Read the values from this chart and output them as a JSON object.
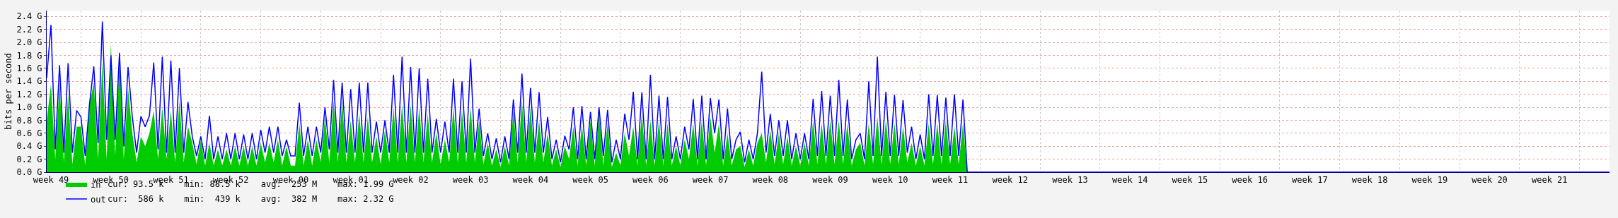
{
  "chart_data": {
    "type": "area",
    "ylabel": "bits per second",
    "categories": [
      null,
      "week 49",
      null,
      null,
      null,
      null,
      null,
      null,
      null,
      null,
      null,
      null,
      null,
      null,
      null,
      "week 50",
      null,
      null,
      null,
      null,
      null,
      null,
      null,
      null,
      null,
      null,
      null,
      null,
      null,
      "week 51",
      null,
      null,
      null,
      null,
      null,
      null,
      null,
      null,
      null,
      null,
      null,
      null,
      null,
      "week 52",
      null,
      null,
      null,
      null,
      null,
      null,
      null,
      null,
      null,
      null,
      null,
      null,
      null,
      "week 00",
      null,
      null,
      null,
      null,
      null,
      null,
      null,
      null,
      null,
      null,
      null,
      null,
      null,
      "week 01",
      null,
      null,
      null,
      null,
      null,
      null,
      null,
      null,
      null,
      null,
      null,
      null,
      null,
      "week 02",
      null,
      null,
      null,
      null,
      null,
      null,
      null,
      null,
      null,
      null,
      null,
      null,
      null,
      "week 03",
      null,
      null,
      null,
      null,
      null,
      null,
      null,
      null,
      null,
      null,
      null,
      null,
      null,
      "week 04",
      null,
      null,
      null,
      null,
      null,
      null,
      null,
      null,
      null,
      null,
      null,
      null,
      null,
      "week 05",
      null,
      null,
      null,
      null,
      null,
      null,
      null,
      null,
      null,
      null,
      null,
      null,
      null,
      "week 06",
      null,
      null,
      null,
      null,
      null,
      null,
      null,
      null,
      null,
      null,
      null,
      null,
      null,
      "week 07",
      null,
      null,
      null,
      null,
      null,
      null,
      null,
      null,
      null,
      null,
      null,
      null,
      null,
      "week 08",
      null,
      null,
      null,
      null,
      null,
      null,
      null,
      null,
      null,
      null,
      null,
      null,
      null,
      "week 09",
      null,
      null,
      null,
      null,
      null,
      null,
      null,
      null,
      null,
      null,
      null,
      null,
      null,
      "week 10",
      null,
      null,
      null,
      null,
      null,
      null,
      null,
      null,
      null,
      null,
      null,
      null,
      null,
      "week 11",
      null,
      null,
      null,
      null,
      null,
      null,
      null,
      null,
      null,
      null,
      null,
      null,
      null,
      "week 12",
      null,
      null,
      null,
      null,
      null,
      null,
      null,
      null,
      null,
      null,
      null,
      null,
      null,
      "week 13",
      null,
      null,
      null,
      null,
      null,
      null,
      null,
      null,
      null,
      null,
      null,
      null,
      null,
      "week 14",
      null,
      null,
      null,
      null,
      null,
      null,
      null,
      null,
      null,
      null,
      null,
      null,
      null,
      "week 15",
      null,
      null,
      null,
      null,
      null,
      null,
      null,
      null,
      null,
      null,
      null,
      null,
      null,
      "week 16",
      null,
      null,
      null,
      null,
      null,
      null,
      null,
      null,
      null,
      null,
      null,
      null,
      null,
      "week 17",
      null,
      null,
      null,
      null,
      null,
      null,
      null,
      null,
      null,
      null,
      null,
      null,
      null,
      "week 18",
      null,
      null,
      null,
      null,
      null,
      null,
      null,
      null,
      null,
      null,
      null,
      null,
      null,
      "week 19",
      null,
      null,
      null,
      null,
      null,
      null,
      null,
      null,
      null,
      null,
      null,
      null,
      null,
      "week 20",
      null,
      null,
      null,
      null,
      null,
      null,
      null,
      null,
      null,
      null,
      null,
      null,
      null,
      "week 21",
      null,
      null,
      null,
      null,
      null,
      null,
      null,
      null,
      null,
      null,
      null,
      null,
      null,
      null
    ],
    "series": [
      {
        "name": "in",
        "color": "#00cc00",
        "values": [
          0.8,
          1.35,
          0.2,
          1.38,
          0.15,
          1.2,
          0.12,
          0.7,
          0.7,
          0.1,
          1.05,
          1.38,
          0.2,
          1.7,
          0.2,
          1.98,
          0.25,
          1.75,
          0.2,
          1.3,
          0.6,
          0.15,
          0.55,
          0.4,
          0.6,
          0.95,
          0.2,
          1.0,
          0.2,
          0.95,
          0.15,
          1.1,
          0.15,
          0.7,
          0.45,
          0.12,
          0.5,
          0.1,
          0.45,
          0.1,
          0.35,
          0.1,
          0.35,
          0.1,
          0.4,
          0.1,
          0.4,
          0.1,
          0.4,
          0.1,
          0.45,
          0.15,
          0.45,
          0.15,
          0.5,
          0.1,
          0.4,
          0.1,
          0.1,
          0.75,
          0.1,
          0.5,
          0.1,
          0.5,
          0.15,
          0.85,
          0.15,
          1.1,
          0.15,
          1.1,
          0.15,
          0.8,
          0.15,
          0.9,
          0.15,
          0.85,
          0.15,
          0.55,
          0.12,
          0.65,
          0.15,
          1.0,
          0.15,
          1.05,
          0.15,
          1.05,
          0.15,
          1.0,
          0.15,
          0.9,
          0.15,
          0.6,
          0.12,
          0.5,
          0.15,
          1.0,
          0.15,
          0.95,
          0.15,
          1.0,
          0.15,
          0.8,
          0.12,
          0.45,
          0.1,
          0.35,
          0.08,
          0.4,
          0.1,
          0.95,
          0.15,
          1.1,
          0.15,
          1.0,
          0.15,
          0.8,
          0.15,
          0.6,
          0.1,
          0.35,
          0.08,
          0.4,
          0.2,
          0.7,
          0.1,
          0.72,
          0.1,
          0.8,
          0.1,
          0.9,
          0.1,
          0.75,
          0.08,
          0.3,
          0.1,
          0.6,
          0.25,
          0.7,
          0.1,
          0.9,
          0.1,
          0.8,
          0.1,
          0.8,
          0.1,
          0.75,
          0.1,
          0.4,
          0.1,
          0.5,
          0.2,
          0.75,
          0.1,
          0.8,
          0.1,
          0.85,
          0.3,
          0.75,
          0.1,
          0.6,
          0.1,
          0.35,
          0.4,
          0.08,
          0.35,
          0.1,
          0.45,
          0.6,
          0.15,
          0.65,
          0.12,
          0.6,
          0.12,
          0.55,
          0.1,
          0.4,
          0.1,
          0.45,
          0.1,
          0.8,
          0.12,
          0.75,
          0.12,
          0.8,
          0.12,
          0.8,
          0.12,
          0.75,
          0.1,
          0.35,
          0.45,
          0.1,
          0.75,
          0.12,
          0.85,
          0.12,
          0.8,
          0.12,
          0.75,
          0.12,
          0.7,
          0.15,
          0.45,
          0.1,
          0.4,
          0.1,
          0.75,
          0.12,
          0.75,
          0.12,
          0.8,
          0.12,
          0.7,
          0.12,
          0.75,
          0,
          0,
          0,
          0,
          0,
          0,
          0,
          0,
          0,
          0,
          0,
          0,
          0,
          0,
          0,
          0,
          0,
          0,
          0,
          0,
          0,
          0,
          0,
          0,
          0,
          0,
          0,
          0,
          0,
          0,
          0,
          0,
          0,
          0,
          0,
          0,
          0,
          0,
          0,
          0,
          0,
          0,
          0,
          0,
          0,
          0,
          0,
          0,
          0,
          0,
          0,
          0,
          0,
          0,
          0,
          0,
          0,
          0,
          0,
          0,
          0,
          0,
          0,
          0,
          0,
          0,
          0,
          0,
          0,
          0,
          0,
          0,
          0,
          0,
          0,
          0,
          0,
          0,
          0,
          0,
          0,
          0,
          0,
          0,
          0,
          0,
          0,
          0,
          0,
          0,
          0,
          0,
          0,
          0,
          0,
          0,
          0,
          0,
          0,
          0,
          0,
          0,
          0,
          0,
          0,
          0,
          0,
          0,
          0,
          0,
          0,
          0,
          0,
          0,
          0,
          0,
          0,
          0,
          0,
          0,
          0,
          0,
          0,
          0,
          0,
          0,
          0,
          0,
          0,
          0,
          0,
          0,
          0,
          0,
          0,
          0,
          0,
          0,
          0,
          0,
          0,
          0,
          0,
          0,
          0,
          0,
          0,
          0,
          0,
          0,
          0
        ]
      },
      {
        "name": "out",
        "type": "line",
        "color": "#0000ff",
        "values": [
          1.45,
          2.27,
          0.35,
          1.65,
          0.3,
          1.68,
          0.3,
          0.95,
          0.85,
          0.25,
          1.05,
          1.63,
          0.45,
          2.32,
          0.5,
          1.8,
          0.5,
          1.84,
          0.4,
          1.62,
          0.85,
          0.3,
          0.86,
          0.7,
          0.87,
          1.69,
          0.35,
          1.78,
          0.3,
          1.72,
          0.3,
          1.6,
          0.3,
          1.08,
          0.55,
          0.25,
          0.55,
          0.2,
          0.87,
          0.2,
          0.55,
          0.2,
          0.6,
          0.2,
          0.6,
          0.2,
          0.58,
          0.2,
          0.6,
          0.2,
          0.65,
          0.3,
          0.7,
          0.3,
          0.7,
          0.25,
          0.5,
          0.25,
          0.25,
          1.07,
          0.25,
          0.7,
          0.25,
          0.7,
          0.3,
          1.0,
          0.35,
          1.42,
          0.3,
          1.38,
          0.3,
          1.28,
          0.3,
          1.38,
          0.3,
          1.38,
          0.3,
          0.78,
          0.3,
          0.8,
          0.3,
          1.5,
          0.3,
          1.78,
          0.3,
          1.62,
          0.3,
          1.6,
          0.3,
          1.44,
          0.3,
          0.82,
          0.3,
          0.78,
          0.3,
          1.44,
          0.3,
          1.4,
          0.3,
          1.75,
          0.3,
          0.98,
          0.25,
          0.6,
          0.2,
          0.52,
          0.15,
          0.55,
          0.2,
          1.12,
          0.3,
          1.52,
          0.3,
          1.3,
          0.3,
          1.23,
          0.3,
          0.85,
          0.2,
          0.5,
          0.15,
          0.56,
          0.35,
          1.0,
          0.2,
          1.02,
          0.2,
          0.93,
          0.2,
          1.0,
          0.25,
          0.96,
          0.15,
          0.5,
          0.2,
          0.9,
          0.5,
          1.24,
          0.2,
          1.23,
          0.2,
          1.5,
          0.2,
          1.18,
          0.2,
          1.16,
          0.2,
          0.55,
          0.2,
          0.7,
          0.35,
          1.13,
          0.2,
          1.18,
          0.2,
          1.14,
          0.6,
          1.12,
          0.2,
          0.98,
          0.2,
          0.5,
          0.62,
          0.15,
          0.5,
          0.2,
          0.6,
          1.55,
          0.3,
          0.9,
          0.25,
          0.8,
          0.25,
          0.8,
          0.2,
          0.6,
          0.2,
          0.6,
          0.2,
          1.13,
          0.25,
          1.25,
          0.25,
          1.18,
          0.25,
          1.42,
          0.25,
          1.12,
          0.2,
          0.5,
          0.6,
          0.2,
          1.4,
          0.25,
          1.78,
          0.25,
          1.24,
          0.25,
          1.19,
          0.25,
          1.11,
          0.3,
          0.7,
          0.2,
          0.58,
          0.2,
          1.2,
          0.25,
          1.19,
          0.25,
          1.15,
          0.25,
          1.2,
          0.25,
          1.12,
          0,
          0,
          0,
          0,
          0,
          0,
          0,
          0,
          0,
          0,
          0,
          0,
          0,
          0,
          0,
          0,
          0,
          0,
          0,
          0,
          0,
          0,
          0,
          0,
          0,
          0,
          0,
          0,
          0,
          0,
          0,
          0,
          0,
          0,
          0,
          0,
          0,
          0,
          0,
          0,
          0,
          0,
          0,
          0,
          0,
          0,
          0,
          0,
          0,
          0,
          0,
          0,
          0,
          0,
          0,
          0,
          0,
          0,
          0,
          0,
          0,
          0,
          0,
          0,
          0,
          0,
          0,
          0,
          0,
          0,
          0,
          0,
          0,
          0,
          0,
          0,
          0,
          0,
          0,
          0,
          0,
          0,
          0,
          0,
          0,
          0,
          0,
          0,
          0,
          0,
          0,
          0,
          0,
          0,
          0,
          0,
          0,
          0,
          0,
          0,
          0,
          0,
          0,
          0,
          0,
          0,
          0,
          0,
          0,
          0,
          0,
          0,
          0,
          0,
          0,
          0,
          0,
          0,
          0,
          0,
          0,
          0,
          0,
          0,
          0,
          0,
          0,
          0,
          0,
          0,
          0,
          0,
          0,
          0,
          0,
          0,
          0,
          0,
          0,
          0,
          0,
          0,
          0,
          0,
          0,
          0,
          0,
          0,
          0,
          0,
          0
        ]
      }
    ],
    "ylim": [
      0,
      2.49
    ],
    "yticks": [
      {
        "value": 0,
        "label": "0.0 G"
      },
      {
        "value": 0.2,
        "label": "0.2 G"
      },
      {
        "value": 0.4,
        "label": "0.4 G"
      },
      {
        "value": 0.6,
        "label": "0.6 G"
      },
      {
        "value": 0.8,
        "label": "0.8 G"
      },
      {
        "value": 1.0,
        "label": "1.0 G"
      },
      {
        "value": 1.2,
        "label": "1.2 G"
      },
      {
        "value": 1.4,
        "label": "1.4 G"
      },
      {
        "value": 1.6,
        "label": "1.6 G"
      },
      {
        "value": 1.8,
        "label": "1.8 G"
      },
      {
        "value": 2.0,
        "label": "2.0 G"
      },
      {
        "value": 2.2,
        "label": "2.2 G"
      },
      {
        "value": 2.4,
        "label": "2.4 G"
      }
    ],
    "grid": true,
    "legend": "bottom left",
    "annotations": [
      "cur: 93.5 k    min: 88.5 k    avg:  253 M    max: 1.99 G",
      "cur:  586 k    min:  439 k    avg:  382 M    max: 2.32 G"
    ]
  }
}
